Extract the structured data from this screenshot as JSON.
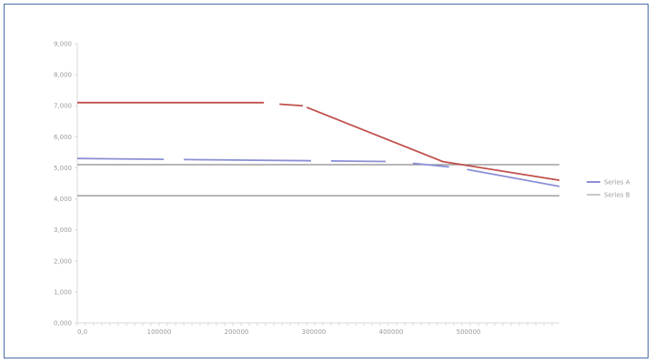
{
  "chart_data": {
    "type": "line",
    "title": "",
    "xlabel": "",
    "ylabel": "",
    "yticks": [
      "0,000",
      "1,000",
      "2,000",
      "3,000",
      "4,000",
      "5,000",
      "6,000",
      "7,000",
      "8,000",
      "9,000"
    ],
    "xticks": [
      "0,0",
      "100000",
      "200000",
      "300000",
      "400000",
      "500000"
    ],
    "ylim": [
      0,
      9
    ],
    "xlim": [
      0,
      620
    ],
    "grid": false,
    "legend": "right",
    "reference_lines": [
      {
        "y": 5.1,
        "color": "#8c8c8c"
      },
      {
        "y": 4.1,
        "color": "#8c8c8c"
      }
    ],
    "series": [
      {
        "name": "Series A",
        "color": "#c0504d",
        "dash": "solid-gaps",
        "points": [
          [
            0,
            7.1
          ],
          [
            240,
            7.1
          ],
          [
            290,
            7.0
          ],
          [
            470,
            5.2
          ],
          [
            620,
            4.6
          ]
        ],
        "gaps": [
          [
            240,
            290
          ]
        ]
      },
      {
        "name": "Series B",
        "color": "#8b8fd6",
        "dash": "dashed",
        "points": [
          [
            0,
            5.3
          ],
          [
            410,
            5.2
          ],
          [
            490,
            5.0
          ],
          [
            620,
            4.4
          ]
        ]
      }
    ],
    "legend_entries": [
      {
        "label": "Series A",
        "color": "#8b8fd6"
      },
      {
        "label": "Series B",
        "color": "#c8c8c8"
      }
    ]
  }
}
